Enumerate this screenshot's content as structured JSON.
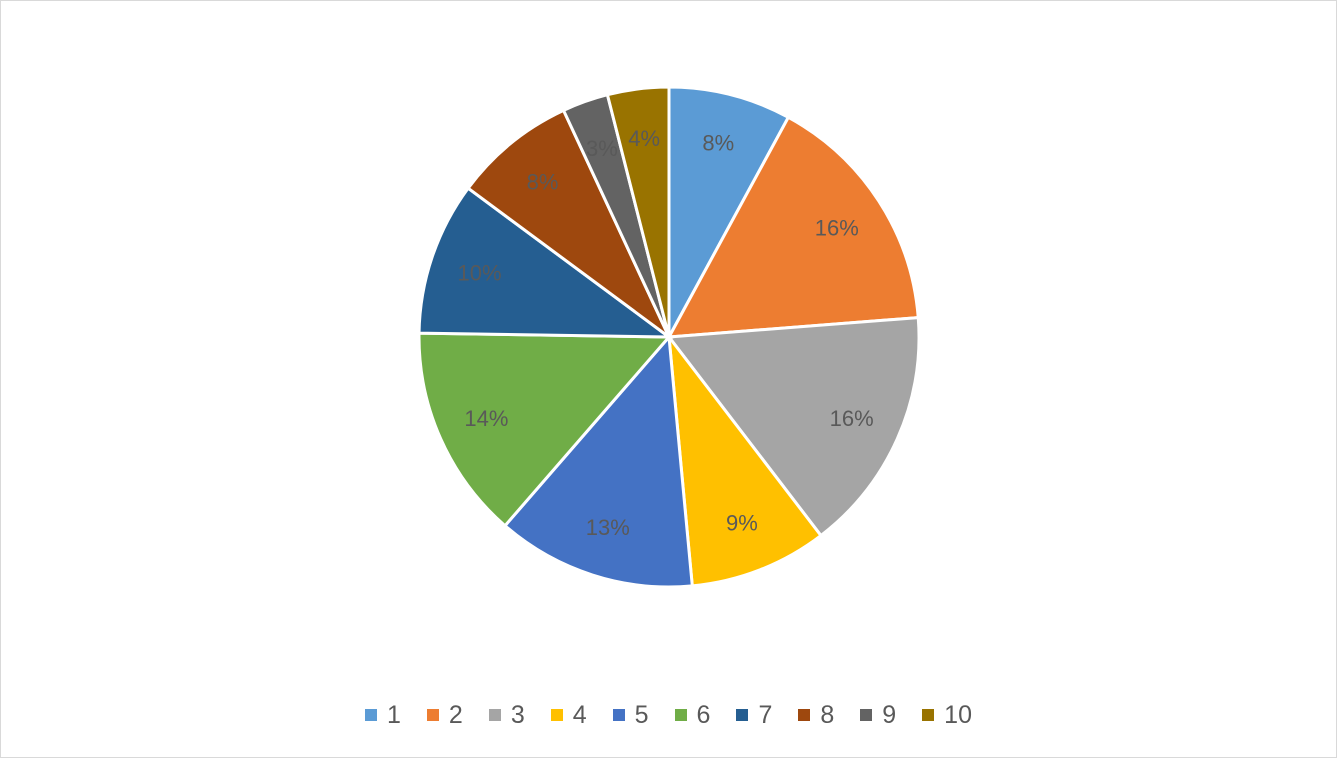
{
  "chart_data": {
    "type": "pie",
    "title": "",
    "categories": [
      "1",
      "2",
      "3",
      "4",
      "5",
      "6",
      "7",
      "8",
      "9",
      "10"
    ],
    "values": [
      8,
      16,
      16,
      9,
      13,
      14,
      10,
      8,
      3,
      4
    ],
    "data_labels": [
      "8%",
      "16%",
      "16%",
      "9%",
      "13%",
      "14%",
      "10%",
      "8%",
      "3%",
      "4%"
    ],
    "colors": [
      "#5B9BD5",
      "#ED7D31",
      "#A5A5A5",
      "#FFC000",
      "#4472C4",
      "#70AD47",
      "#255E91",
      "#9E480E",
      "#636363",
      "#997300"
    ],
    "legend_position": "bottom",
    "start_angle": "12 o'clock, clockwise"
  }
}
